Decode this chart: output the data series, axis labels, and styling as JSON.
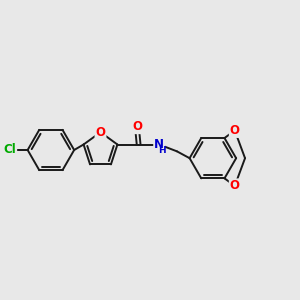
{
  "background_color": "#e8e8e8",
  "bond_color": "#1a1a1a",
  "bond_width": 1.4,
  "atom_colors": {
    "O": "#ff0000",
    "N": "#0000cd",
    "Cl": "#00aa00",
    "C": "#1a1a1a"
  },
  "font_size_atom": 8.5
}
